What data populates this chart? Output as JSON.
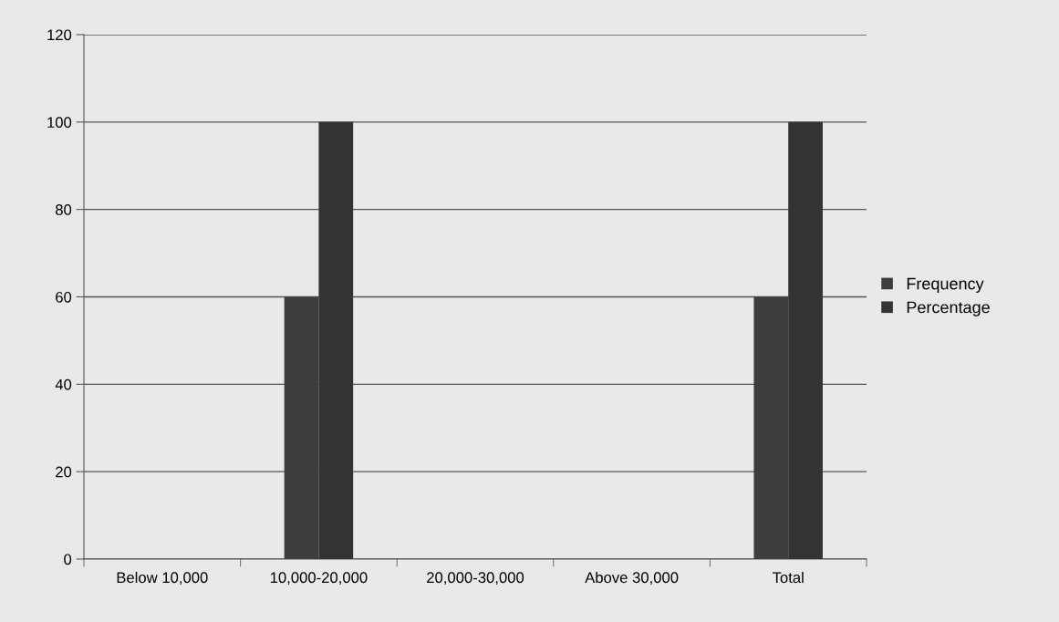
{
  "chart_data": {
    "type": "bar",
    "categories": [
      "Below 10,000",
      "10,000-20,000",
      "20,000-30,000",
      "Above 30,000",
      "Total"
    ],
    "series": [
      {
        "name": "Frequency",
        "color": "#3d3d3d",
        "values": [
          0,
          60,
          0,
          0,
          60
        ]
      },
      {
        "name": "Percentage",
        "color": "#333333",
        "values": [
          0,
          100,
          0,
          0,
          100
        ]
      }
    ],
    "ylim": [
      0,
      120
    ],
    "yticks": [
      0,
      20,
      40,
      60,
      80,
      100,
      120
    ],
    "grid": "y",
    "legend": "right"
  }
}
